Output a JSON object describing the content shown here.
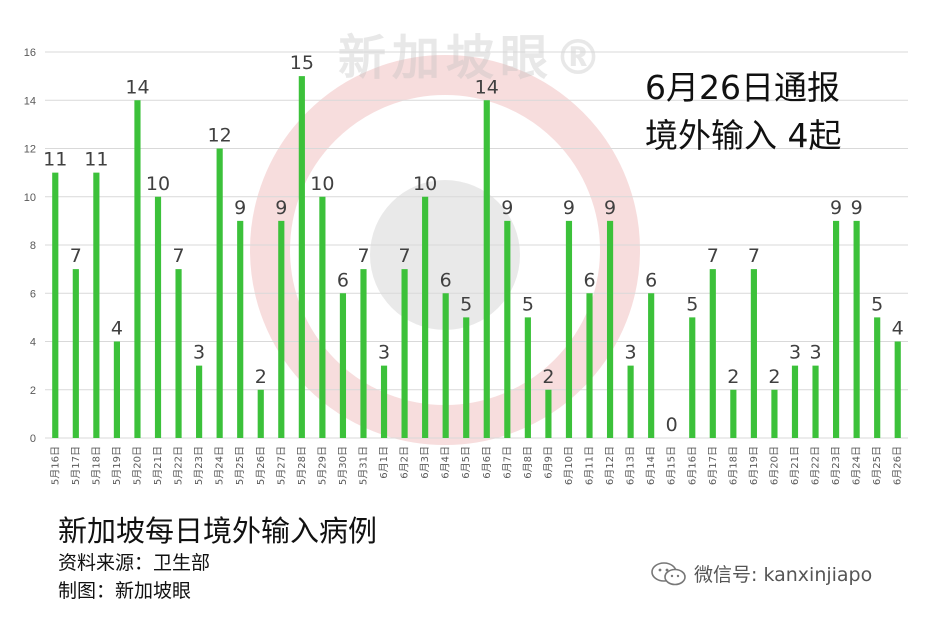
{
  "watermark": {
    "brand_text": "新加坡眼®"
  },
  "headline": {
    "line1": "6月26日通报",
    "line2": "境外输入 4起"
  },
  "caption": {
    "title": "新加坡每日境外输入病例",
    "source": "资料来源：卫生部",
    "credit": "制图：新加坡眼"
  },
  "wechat": {
    "label": "微信号: kanxinjiapo",
    "icon": "wechat-icon"
  },
  "colors": {
    "bar": "#3cc13a",
    "grid": "#d9d9d9",
    "axis_text": "#595959",
    "label": "#404040",
    "watermark_red": "#f2c6c6"
  },
  "chart_data": {
    "type": "bar",
    "title": "",
    "xlabel": "",
    "ylabel": "",
    "ylim": [
      0,
      16
    ],
    "yticks": [
      0,
      2,
      4,
      6,
      8,
      10,
      12,
      14,
      16
    ],
    "grid": true,
    "data_labels": true,
    "categories": [
      "5月16日",
      "5月17日",
      "5月18日",
      "5月19日",
      "5月20日",
      "5月21日",
      "5月22日",
      "5月23日",
      "5月24日",
      "5月25日",
      "5月26日",
      "5月27日",
      "5月28日",
      "5月29日",
      "5月30日",
      "5月31日",
      "6月1日",
      "6月2日",
      "6月3日",
      "6月4日",
      "6月5日",
      "6月6日",
      "6月7日",
      "6月8日",
      "6月9日",
      "6月10日",
      "6月11日",
      "6月12日",
      "6月13日",
      "6月14日",
      "6月15日",
      "6月16日",
      "6月17日",
      "6月18日",
      "6月19日",
      "6月20日",
      "6月21日",
      "6月22日",
      "6月23日",
      "6月24日",
      "6月25日",
      "6月26日"
    ],
    "values": [
      11,
      7,
      11,
      4,
      14,
      10,
      7,
      3,
      12,
      9,
      2,
      9,
      15,
      10,
      6,
      7,
      3,
      7,
      10,
      6,
      5,
      14,
      9,
      5,
      2,
      9,
      6,
      9,
      3,
      6,
      0,
      5,
      7,
      2,
      7,
      2,
      3,
      3,
      9,
      9,
      5,
      4
    ]
  }
}
